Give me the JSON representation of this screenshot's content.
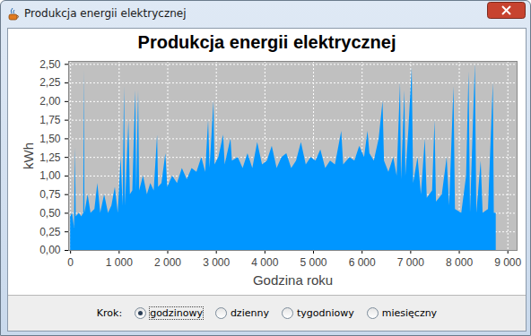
{
  "window": {
    "title": "Produkcja energii elektrycznej"
  },
  "chart_data": {
    "type": "area",
    "title": "Produkcja energii elektrycznej",
    "x_label": "Godzina roku",
    "y_label": "kWh",
    "x": [
      0,
      40,
      80,
      100,
      115,
      180,
      230,
      270,
      280,
      295,
      360,
      420,
      500,
      560,
      620,
      700,
      780,
      850,
      920,
      980,
      1040,
      1080,
      1110,
      1130,
      1200,
      1230,
      1280,
      1340,
      1360,
      1400,
      1420,
      1500,
      1580,
      1650,
      1720,
      1790,
      1810,
      1880,
      1960,
      2000,
      2100,
      2200,
      2300,
      2400,
      2500,
      2600,
      2700,
      2780,
      2840,
      2870,
      2950,
      2970,
      3050,
      3150,
      3180,
      3300,
      3330,
      3450,
      3550,
      3650,
      3750,
      3850,
      3950,
      4050,
      4150,
      4250,
      4350,
      4450,
      4550,
      4650,
      4750,
      4850,
      4950,
      5050,
      5150,
      5250,
      5350,
      5450,
      5580,
      5620,
      5750,
      5850,
      5950,
      6050,
      6120,
      6160,
      6250,
      6350,
      6430,
      6460,
      6550,
      6650,
      6720,
      6790,
      6810,
      6880,
      6900,
      6960,
      7030,
      7060,
      7150,
      7220,
      7300,
      7340,
      7450,
      7500,
      7530,
      7650,
      7750,
      7800,
      7890,
      7920,
      8050,
      8150,
      8200,
      8230,
      8330,
      8360,
      8450,
      8490,
      8600,
      8700,
      8720,
      8760
    ],
    "values": [
      0.45,
      0.5,
      0.3,
      1.38,
      0.45,
      0.5,
      0.45,
      0.5,
      2.42,
      0.5,
      0.75,
      0.5,
      0.55,
      0.9,
      0.5,
      0.75,
      0.5,
      0.6,
      0.85,
      0.5,
      1.25,
      0.6,
      2.2,
      0.6,
      1.75,
      0.75,
      0.8,
      2.15,
      0.8,
      2.15,
      0.8,
      1.0,
      0.75,
      0.9,
      0.8,
      1.55,
      0.85,
      0.9,
      1.3,
      0.85,
      1.0,
      0.9,
      1.1,
      0.95,
      1.1,
      1.05,
      1.25,
      1.05,
      1.75,
      1.1,
      2.0,
      1.15,
      1.25,
      1.55,
      1.15,
      1.5,
      1.2,
      1.25,
      1.1,
      1.3,
      1.1,
      1.45,
      1.15,
      1.2,
      1.4,
      1.1,
      1.25,
      1.3,
      1.1,
      1.2,
      1.45,
      1.15,
      1.25,
      1.2,
      1.35,
      1.1,
      1.2,
      1.15,
      1.6,
      1.15,
      1.25,
      1.2,
      1.4,
      1.25,
      1.6,
      1.3,
      1.2,
      1.5,
      2.0,
      1.2,
      1.05,
      1.25,
      1.0,
      2.25,
      0.95,
      2.15,
      1.0,
      1.6,
      2.45,
      0.9,
      1.25,
      0.75,
      1.5,
      0.7,
      0.8,
      1.75,
      0.65,
      0.75,
      1.25,
      0.6,
      2.2,
      0.55,
      0.5,
      1.0,
      2.4,
      0.5,
      2.5,
      0.5,
      1.2,
      0.5,
      0.55,
      2.25,
      0.5,
      0.5
    ],
    "color": "#0096ff",
    "xlim": [
      -40,
      9190
    ],
    "ylim": [
      0,
      2.54
    ],
    "xticks": [
      0,
      {
        "value": 1000,
        "label": "1 000"
      },
      {
        "value": 2000,
        "label": "2 000"
      },
      {
        "value": 3000,
        "label": "3 000"
      },
      {
        "value": 4000,
        "label": "4 000"
      },
      {
        "value": 5000,
        "label": "5 000"
      },
      {
        "value": 6000,
        "label": "6 000"
      },
      {
        "value": 7000,
        "label": "7 000"
      },
      {
        "value": 8000,
        "label": "8 000"
      },
      {
        "value": 9000,
        "label": "9 000"
      }
    ],
    "yticks": [
      {
        "value": 0,
        "label": "0,00"
      },
      {
        "value": 0.25,
        "label": "0,25"
      },
      {
        "value": 0.5,
        "label": "0,50"
      },
      {
        "value": 0.75,
        "label": "0,75"
      },
      {
        "value": 1,
        "label": "1,00"
      },
      {
        "value": 1.25,
        "label": "1,25"
      },
      {
        "value": 1.5,
        "label": "1,50"
      },
      {
        "value": 1.75,
        "label": "1,75"
      },
      {
        "value": 2,
        "label": "2,00"
      },
      {
        "value": 2.25,
        "label": "2,25"
      },
      {
        "value": 2.5,
        "label": "2,50"
      }
    ],
    "grid": true
  },
  "controls": {
    "label": "Krok:",
    "options": [
      "godzinowy",
      "dzienny",
      "tygodniowy",
      "miesięczny"
    ],
    "selected": "godzinowy"
  }
}
